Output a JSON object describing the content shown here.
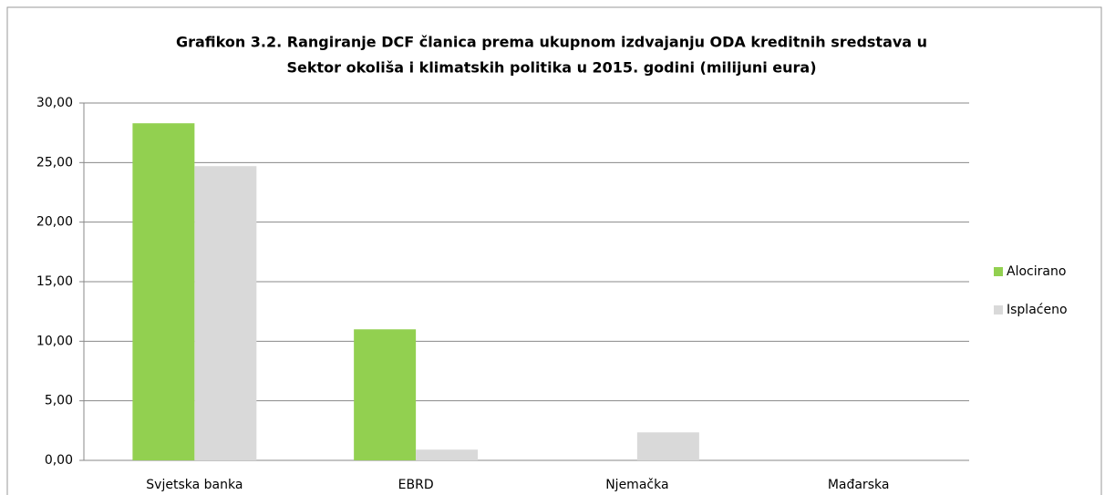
{
  "chart_data": {
    "type": "bar",
    "title": [
      "Grafikon 3.2. Rangiranje DCF članica prema ukupnom izdvajanju ODA kreditnih sredstava u",
      "Sektor okoliša i  klimatskih politika u 2015. godini (milijuni eura)"
    ],
    "categories": [
      "Svjetska banka",
      "EBRD",
      "Njemačka",
      "Mađarska"
    ],
    "series": [
      {
        "name": "Alocirano",
        "color": "#92d050",
        "values": [
          28.3,
          11.0,
          0,
          0
        ]
      },
      {
        "name": "Isplaćeno",
        "color": "#d9d9d9",
        "values": [
          24.7,
          0.9,
          2.35,
          0
        ]
      }
    ],
    "ylim": [
      0,
      30
    ],
    "yticks": [
      {
        "value": 0,
        "label": "0,00"
      },
      {
        "value": 5,
        "label": "5,00"
      },
      {
        "value": 10,
        "label": "10,00"
      },
      {
        "value": 15,
        "label": "15,00"
      },
      {
        "value": 20,
        "label": "20,00"
      },
      {
        "value": 25,
        "label": "25,00"
      },
      {
        "value": 30,
        "label": "30,00"
      }
    ],
    "grid": true,
    "legend": "right"
  }
}
